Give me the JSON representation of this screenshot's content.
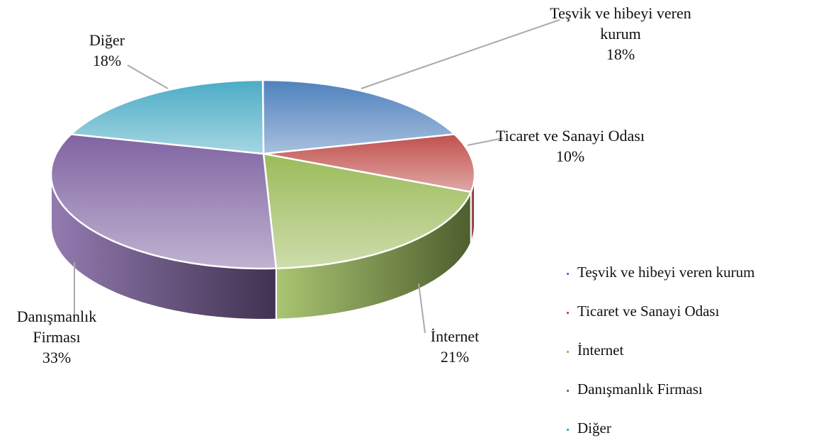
{
  "chart_data": {
    "type": "pie3d",
    "categories": [
      "Teşvik ve hibeyi veren kurum",
      "Ticaret ve Sanayi Odası",
      "İnternet",
      "Danışmanlık Firması",
      "Diğer"
    ],
    "values": [
      18,
      10,
      21,
      33,
      18
    ],
    "value_labels": [
      "18%",
      "10%",
      "21%",
      "33%",
      "18%"
    ],
    "colors": [
      "#4f81bd",
      "#c0504d",
      "#9bbb59",
      "#8064a2",
      "#4bacc6"
    ],
    "legend": "right"
  }
}
